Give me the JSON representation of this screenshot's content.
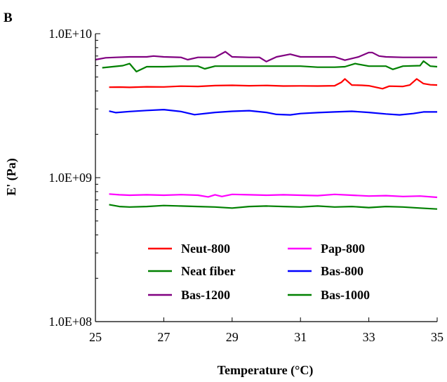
{
  "chart_data": {
    "type": "line",
    "panel_label": "B",
    "xlabel": "Temperature (°C)",
    "ylabel": "E' (Pa)",
    "xlim": [
      25,
      35
    ],
    "ylim": [
      100000000,
      10000000000
    ],
    "yscale": "log",
    "grid": false,
    "legend_position": "lower-center",
    "xticks": [
      25,
      27,
      29,
      31,
      33,
      35
    ],
    "xtick_labels": [
      "25",
      "27",
      "29",
      "31",
      "33",
      "35"
    ],
    "yticks": [
      100000000,
      1000000000,
      10000000000
    ],
    "ytick_labels": [
      "1.0E+08",
      "1.0E+09",
      "1.0E+10"
    ],
    "series": [
      {
        "name": "Neut-800",
        "color": "#ff0000",
        "x": [
          25.4,
          25.7,
          26.0,
          26.5,
          27.0,
          27.5,
          28.0,
          28.5,
          29.0,
          29.5,
          30.0,
          30.5,
          31.0,
          31.5,
          32.0,
          32.2,
          32.3,
          32.5,
          32.8,
          33.0,
          33.2,
          33.4,
          33.6,
          34.0,
          34.2,
          34.4,
          34.6,
          34.8,
          35.0
        ],
        "y": [
          4250000000.0,
          4260000000.0,
          4240000000.0,
          4280000000.0,
          4270000000.0,
          4320000000.0,
          4300000000.0,
          4360000000.0,
          4380000000.0,
          4350000000.0,
          4370000000.0,
          4330000000.0,
          4340000000.0,
          4330000000.0,
          4350000000.0,
          4600000000.0,
          4850000000.0,
          4400000000.0,
          4380000000.0,
          4350000000.0,
          4250000000.0,
          4150000000.0,
          4320000000.0,
          4300000000.0,
          4400000000.0,
          4850000000.0,
          4500000000.0,
          4420000000.0,
          4400000000.0
        ]
      },
      {
        "name": "Pap-800",
        "color": "#ff00ff",
        "x": [
          25.4,
          25.7,
          26.0,
          26.5,
          27.0,
          27.5,
          28.0,
          28.3,
          28.5,
          28.7,
          29.0,
          29.5,
          30.0,
          30.5,
          31.0,
          31.5,
          32.0,
          32.5,
          33.0,
          33.5,
          34.0,
          34.5,
          35.0
        ],
        "y": [
          770000000.0,
          760000000.0,
          755000000.0,
          760000000.0,
          755000000.0,
          762000000.0,
          755000000.0,
          735000000.0,
          760000000.0,
          740000000.0,
          765000000.0,
          760000000.0,
          755000000.0,
          760000000.0,
          755000000.0,
          750000000.0,
          765000000.0,
          755000000.0,
          745000000.0,
          750000000.0,
          740000000.0,
          745000000.0,
          730000000.0
        ]
      },
      {
        "name": "Neat fiber",
        "color": "#008000",
        "x": [
          25.4,
          25.7,
          26.0,
          26.5,
          27.0,
          27.5,
          28.0,
          28.5,
          29.0,
          29.5,
          30.0,
          30.5,
          31.0,
          31.5,
          32.0,
          32.5,
          33.0,
          33.5,
          34.0,
          34.5,
          35.0
        ],
        "y": [
          650000000.0,
          630000000.0,
          625000000.0,
          630000000.0,
          640000000.0,
          635000000.0,
          630000000.0,
          625000000.0,
          615000000.0,
          630000000.0,
          635000000.0,
          630000000.0,
          625000000.0,
          635000000.0,
          625000000.0,
          630000000.0,
          620000000.0,
          630000000.0,
          625000000.0,
          615000000.0,
          605000000.0
        ]
      },
      {
        "name": "Bas-800",
        "color": "#0000ff",
        "x": [
          25.4,
          25.6,
          26.0,
          26.5,
          27.0,
          27.5,
          27.9,
          28.5,
          29.0,
          29.5,
          30.0,
          30.3,
          30.7,
          31.0,
          31.5,
          32.0,
          32.5,
          33.0,
          33.5,
          33.9,
          34.3,
          34.6,
          35.0
        ],
        "y": [
          2900000000.0,
          2830000000.0,
          2880000000.0,
          2930000000.0,
          2970000000.0,
          2880000000.0,
          2740000000.0,
          2840000000.0,
          2890000000.0,
          2920000000.0,
          2840000000.0,
          2750000000.0,
          2730000000.0,
          2790000000.0,
          2830000000.0,
          2860000000.0,
          2890000000.0,
          2840000000.0,
          2770000000.0,
          2730000000.0,
          2790000000.0,
          2860000000.0,
          2860000000.0
        ]
      },
      {
        "name": "Bas-1200",
        "color": "#800080",
        "x": [
          25.0,
          25.3,
          25.6,
          26.0,
          26.5,
          26.7,
          27.0,
          27.5,
          27.7,
          28.0,
          28.5,
          28.8,
          29.0,
          29.5,
          29.8,
          30.0,
          30.3,
          30.7,
          31.0,
          31.5,
          32.0,
          32.3,
          32.7,
          33.0,
          33.1,
          33.3,
          33.5,
          34.0,
          34.5,
          35.0
        ],
        "y": [
          6600000000.0,
          6800000000.0,
          6850000000.0,
          6900000000.0,
          6900000000.0,
          7000000000.0,
          6900000000.0,
          6850000000.0,
          6600000000.0,
          6850000000.0,
          6850000000.0,
          7500000000.0,
          6900000000.0,
          6850000000.0,
          6850000000.0,
          6400000000.0,
          6900000000.0,
          7200000000.0,
          6900000000.0,
          6900000000.0,
          6900000000.0,
          6550000000.0,
          6900000000.0,
          7400000000.0,
          7400000000.0,
          7000000000.0,
          6900000000.0,
          6850000000.0,
          6850000000.0,
          6850000000.0
        ]
      },
      {
        "name": "Bas-1000",
        "color": "#008000",
        "x": [
          25.2,
          25.5,
          25.8,
          26.0,
          26.2,
          26.5,
          27.0,
          27.5,
          28.0,
          28.2,
          28.5,
          29.0,
          29.5,
          30.0,
          30.5,
          31.0,
          31.5,
          32.0,
          32.3,
          32.6,
          33.0,
          33.5,
          33.7,
          34.0,
          34.5,
          34.6,
          34.8,
          35.0
        ],
        "y": [
          5800000000.0,
          5900000000.0,
          6000000000.0,
          6200000000.0,
          5450000000.0,
          5900000000.0,
          5900000000.0,
          5950000000.0,
          5950000000.0,
          5700000000.0,
          5950000000.0,
          5950000000.0,
          5950000000.0,
          5950000000.0,
          5950000000.0,
          5950000000.0,
          5850000000.0,
          5850000000.0,
          5900000000.0,
          6200000000.0,
          5950000000.0,
          5950000000.0,
          5650000000.0,
          5950000000.0,
          6000000000.0,
          6450000000.0,
          5950000000.0,
          5900000000.0
        ]
      }
    ]
  }
}
